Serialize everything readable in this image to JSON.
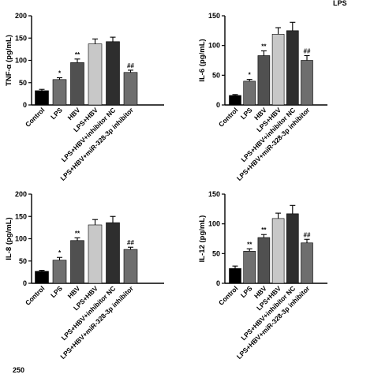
{
  "figure": {
    "fragment_top_right": "LPS",
    "fragment_bottom_left": "250"
  },
  "chart_data": [
    {
      "type": "bar",
      "ylabel": "TNF-α (pg/mL)",
      "ylim": [
        0,
        200
      ],
      "yticks": [
        0,
        50,
        100,
        150,
        200
      ],
      "categories": [
        "Control",
        "LPS",
        "HBV",
        "LPS+HBV",
        "LPS+HBV+inhibitor NC",
        "LPS+HBV+miR-328-3p inhibitor"
      ],
      "values": [
        32,
        57,
        95,
        137,
        142,
        73
      ],
      "errors": [
        3,
        4,
        8,
        11,
        10,
        5
      ],
      "annotations": [
        "",
        "*",
        "**",
        "",
        "",
        "##"
      ],
      "bar_colors": [
        "#000000",
        "#707070",
        "#505050",
        "#c8c8c8",
        "#2e2e2e",
        "#6e6e6e"
      ],
      "grid": false
    },
    {
      "type": "bar",
      "ylabel": "IL-6 (pg/mL)",
      "ylim": [
        0,
        150
      ],
      "yticks": [
        0,
        50,
        100,
        150
      ],
      "categories": [
        "Control",
        "LPS",
        "HBV",
        "LPS+HBV",
        "LPS+HBV+inhibitor NC",
        "LPS+HBV+miR-328-3p inhibitor"
      ],
      "values": [
        16,
        40,
        83,
        119,
        125,
        75
      ],
      "errors": [
        1.5,
        3,
        8,
        11,
        14,
        8
      ],
      "annotations": [
        "",
        "*",
        "**",
        "",
        "",
        "##"
      ],
      "bar_colors": [
        "#000000",
        "#707070",
        "#505050",
        "#c8c8c8",
        "#2e2e2e",
        "#6e6e6e"
      ],
      "grid": false
    },
    {
      "type": "bar",
      "ylabel": "IL-8 (pg/mL)",
      "ylim": [
        0,
        200
      ],
      "yticks": [
        0,
        50,
        100,
        150,
        200
      ],
      "categories": [
        "Control",
        "LPS",
        "HBV",
        "LPS+HBV",
        "LPS+HBV+inhibitor NC",
        "LPS+HBV+miR-328-3p inhibitor"
      ],
      "values": [
        27,
        52,
        96,
        131,
        136,
        76
      ],
      "errors": [
        2,
        6,
        6,
        12,
        14,
        5
      ],
      "annotations": [
        "",
        "*",
        "**",
        "",
        "",
        "##"
      ],
      "bar_colors": [
        "#000000",
        "#707070",
        "#505050",
        "#c8c8c8",
        "#2e2e2e",
        "#6e6e6e"
      ],
      "grid": false
    },
    {
      "type": "bar",
      "ylabel": "IL-12 (pg/mL)",
      "ylim": [
        0,
        150
      ],
      "yticks": [
        0,
        50,
        100,
        150
      ],
      "categories": [
        "Control",
        "LPS",
        "HBV",
        "LPS+HBV",
        "LPS+HBV+inhibitor NC",
        "LPS+HBV+miR-328-3p inhibitor"
      ],
      "values": [
        25,
        54,
        77,
        109,
        117,
        68
      ],
      "errors": [
        4,
        4,
        5,
        9,
        14,
        6
      ],
      "annotations": [
        "",
        "**",
        "**",
        "",
        "",
        "##"
      ],
      "bar_colors": [
        "#000000",
        "#707070",
        "#505050",
        "#c8c8c8",
        "#2e2e2e",
        "#6e6e6e"
      ],
      "grid": false
    }
  ]
}
